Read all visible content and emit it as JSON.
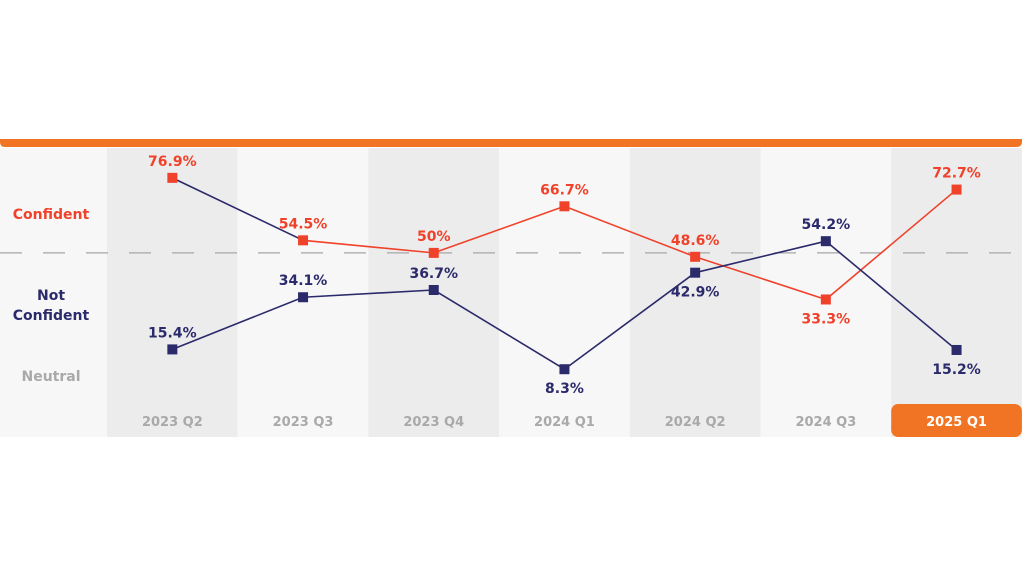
{
  "chart_data": {
    "type": "line",
    "categories": [
      "2023 Q2",
      "2023 Q3",
      "2023 Q4",
      "2024 Q1",
      "2024 Q2",
      "2024 Q3",
      "2025 Q1"
    ],
    "highlighted_category": "2025 Q1",
    "row_labels": {
      "confident": "Confident",
      "not_confident": "Not Confident",
      "neutral": "Neutral"
    },
    "reference_line": 50,
    "ylim": [
      -16,
      87.6
    ],
    "series": [
      {
        "key": "confident",
        "color": "#f0412a",
        "values": [
          76.9,
          54.5,
          50,
          66.7,
          48.6,
          33.3,
          72.7
        ],
        "labels": [
          "76.9%",
          "54.5%",
          "50%",
          "66.7%",
          "48.6%",
          "33.3%",
          "72.7%"
        ],
        "label_pos": [
          "above",
          "above",
          "above",
          "above",
          "above",
          "below",
          "above"
        ],
        "segment_colors": [
          "#2b2a6b",
          "#f0412a",
          "#f0412a",
          "#f0412a",
          "#f0412a",
          "#f0412a"
        ]
      },
      {
        "key": "not_confident",
        "color": "#2b2a6b",
        "values": [
          15.4,
          34.1,
          36.7,
          8.3,
          42.9,
          54.2,
          15.2
        ],
        "labels": [
          "15.4%",
          "34.1%",
          "36.7%",
          "8.3%",
          "42.9%",
          "54.2%",
          "15.2%"
        ],
        "label_pos": [
          "above",
          "above",
          "above",
          "below",
          "below",
          "above",
          "below"
        ]
      }
    ],
    "colors": {
      "accent": "#f07424",
      "neutral_text": "#a9a9a9",
      "band_dark": "#ececec",
      "band_light": "#f7f7f7",
      "grid_dash": "#a6a6a6"
    }
  }
}
